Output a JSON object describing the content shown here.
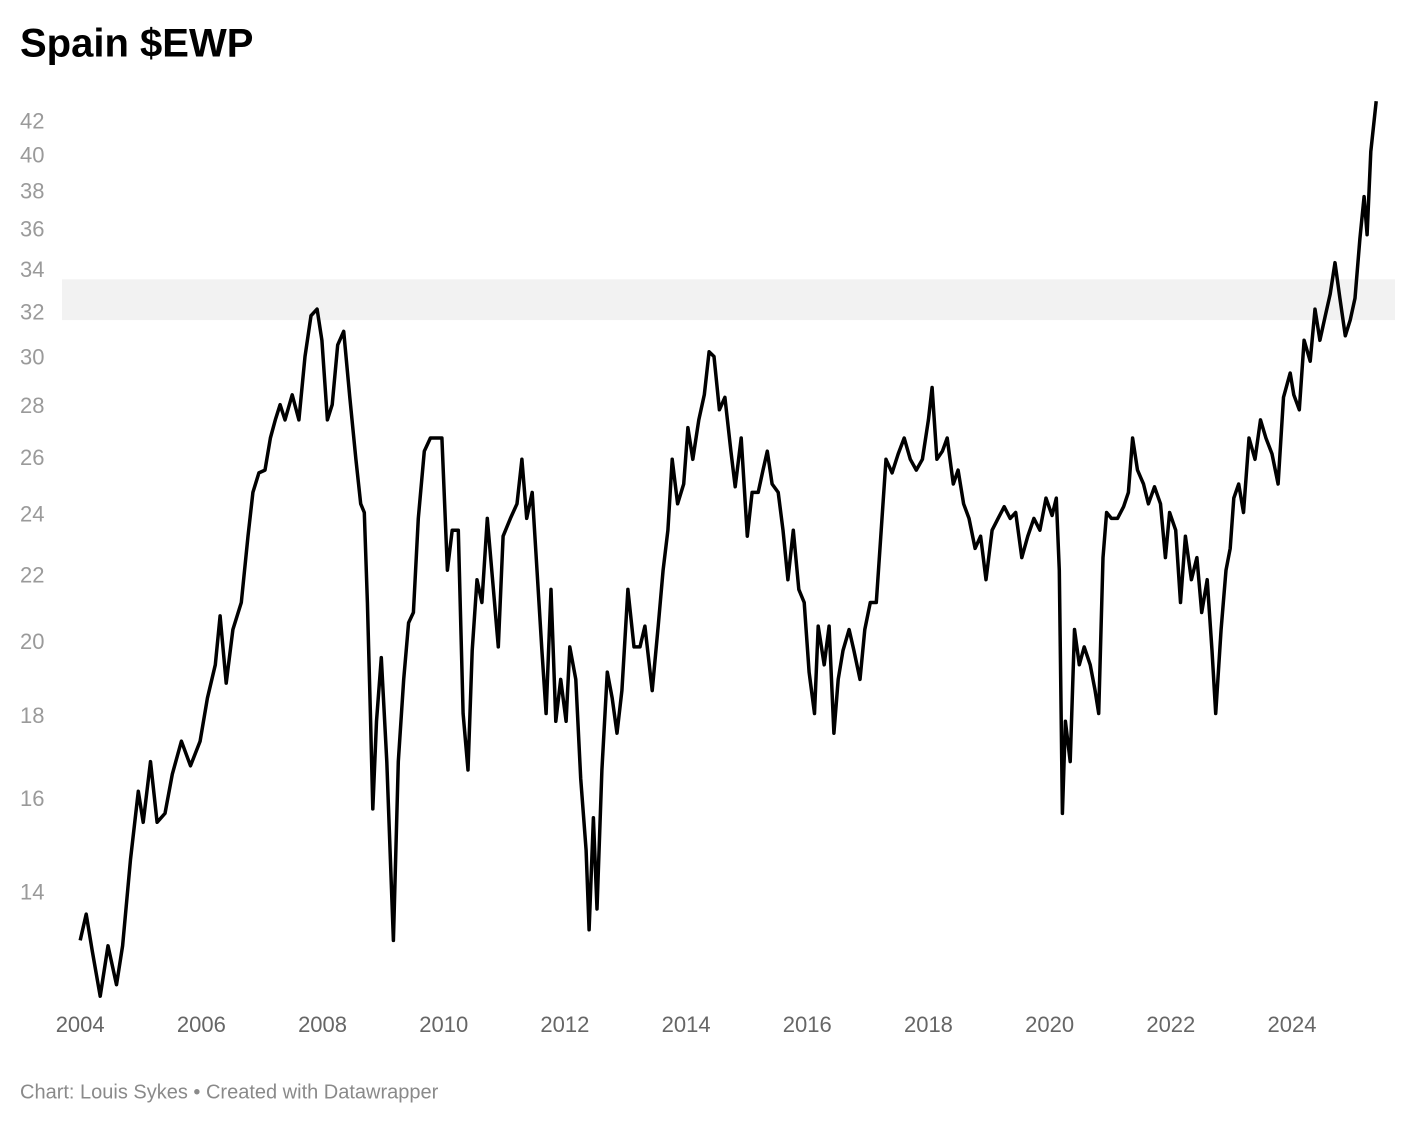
{
  "chart_data": {
    "type": "line",
    "title": "Spain $EWP",
    "source": "Chart: Louis Sykes • Created with Datawrapper",
    "log_scale_y": true,
    "grid": false,
    "xlim": [
      2003.7,
      2025.7
    ],
    "xticks": [
      2004,
      2006,
      2008,
      2010,
      2012,
      2014,
      2016,
      2018,
      2020,
      2022,
      2024
    ],
    "ylim": [
      12,
      43.5
    ],
    "yticks": [
      14,
      16,
      18,
      20,
      22,
      24,
      26,
      28,
      30,
      32,
      34,
      36,
      38,
      40,
      42
    ],
    "highlight_band": {
      "range": [
        31.7,
        33.6
      ],
      "color": "#f2f2f2"
    },
    "x": [
      2004.0,
      2004.1,
      2004.2,
      2004.33,
      2004.46,
      2004.6,
      2004.7,
      2004.83,
      2004.96,
      2005.04,
      2005.16,
      2005.27,
      2005.4,
      2005.52,
      2005.67,
      2005.82,
      2005.98,
      2006.1,
      2006.23,
      2006.31,
      2006.41,
      2006.52,
      2006.66,
      2006.77,
      2006.85,
      2006.95,
      2007.05,
      2007.14,
      2007.22,
      2007.3,
      2007.38,
      2007.5,
      2007.61,
      2007.71,
      2007.81,
      2007.91,
      2007.99,
      2008.08,
      2008.16,
      2008.25,
      2008.35,
      2008.45,
      2008.55,
      2008.63,
      2008.69,
      2008.74,
      2008.79,
      2008.83,
      2008.89,
      2008.97,
      2009.06,
      2009.12,
      2009.17,
      2009.25,
      2009.34,
      2009.42,
      2009.5,
      2009.58,
      2009.68,
      2009.78,
      2009.88,
      2009.97,
      2010.06,
      2010.14,
      2010.24,
      2010.32,
      2010.4,
      2010.47,
      2010.55,
      2010.63,
      2010.72,
      2010.82,
      2010.9,
      2010.98,
      2011.1,
      2011.21,
      2011.29,
      2011.37,
      2011.46,
      2011.54,
      2011.62,
      2011.69,
      2011.77,
      2011.85,
      2011.93,
      2012.02,
      2012.08,
      2012.18,
      2012.26,
      2012.35,
      2012.4,
      2012.47,
      2012.53,
      2012.61,
      2012.7,
      2012.78,
      2012.86,
      2012.94,
      2013.04,
      2013.14,
      2013.24,
      2013.32,
      2013.44,
      2013.54,
      2013.62,
      2013.7,
      2013.77,
      2013.86,
      2013.96,
      2014.03,
      2014.11,
      2014.21,
      2014.3,
      2014.38,
      2014.46,
      2014.55,
      2014.64,
      2014.74,
      2014.81,
      2014.91,
      2015.01,
      2015.09,
      2015.19,
      2015.27,
      2015.34,
      2015.42,
      2015.52,
      2015.6,
      2015.68,
      2015.77,
      2015.86,
      2015.95,
      2016.03,
      2016.12,
      2016.18,
      2016.28,
      2016.36,
      2016.44,
      2016.51,
      2016.59,
      2016.69,
      2016.77,
      2016.87,
      2016.95,
      2017.04,
      2017.14,
      2017.22,
      2017.3,
      2017.4,
      2017.5,
      2017.6,
      2017.7,
      2017.8,
      2017.9,
      2018.0,
      2018.06,
      2018.14,
      2018.23,
      2018.31,
      2018.41,
      2018.49,
      2018.58,
      2018.67,
      2018.77,
      2018.86,
      2018.95,
      2019.05,
      2019.15,
      2019.25,
      2019.35,
      2019.44,
      2019.54,
      2019.64,
      2019.74,
      2019.84,
      2019.94,
      2020.04,
      2020.11,
      2020.16,
      2020.21,
      2020.26,
      2020.34,
      2020.41,
      2020.49,
      2020.57,
      2020.67,
      2020.75,
      2020.81,
      2020.88,
      2020.94,
      2021.02,
      2021.12,
      2021.22,
      2021.3,
      2021.37,
      2021.45,
      2021.55,
      2021.63,
      2021.73,
      2021.83,
      2021.91,
      2021.98,
      2022.08,
      2022.16,
      2022.24,
      2022.34,
      2022.43,
      2022.51,
      2022.6,
      2022.68,
      2022.74,
      2022.83,
      2022.91,
      2022.98,
      2023.04,
      2023.12,
      2023.2,
      2023.29,
      2023.39,
      2023.48,
      2023.57,
      2023.67,
      2023.77,
      2023.86,
      2023.97,
      2024.03,
      2024.12,
      2024.2,
      2024.3,
      2024.38,
      2024.46,
      2024.55,
      2024.63,
      2024.71,
      2024.79,
      2024.88,
      2024.96,
      2025.04,
      2025.12,
      2025.19,
      2025.24,
      2025.3,
      2025.39
    ],
    "series": [
      {
        "color": "#000000",
        "values": [
          13.1,
          13.6,
          12.9,
          12.1,
          13.0,
          12.3,
          13.0,
          14.7,
          16.2,
          15.5,
          16.9,
          15.5,
          15.7,
          16.6,
          17.4,
          16.8,
          17.4,
          18.5,
          19.4,
          20.8,
          18.9,
          20.4,
          21.2,
          23.3,
          24.8,
          25.5,
          25.6,
          26.8,
          27.5,
          28.1,
          27.5,
          28.5,
          27.5,
          30.1,
          31.9,
          32.2,
          30.8,
          27.5,
          28.1,
          30.6,
          31.2,
          28.4,
          26.0,
          24.4,
          24.1,
          21.2,
          18.1,
          15.8,
          17.9,
          19.6,
          16.9,
          14.7,
          13.1,
          16.9,
          19.0,
          20.6,
          20.9,
          23.9,
          26.3,
          26.8,
          26.8,
          26.8,
          22.2,
          23.5,
          23.5,
          18.1,
          16.7,
          19.8,
          21.9,
          21.2,
          23.9,
          21.6,
          19.9,
          23.3,
          23.9,
          24.4,
          26.0,
          23.9,
          24.8,
          22.2,
          19.8,
          18.1,
          21.6,
          17.9,
          19.0,
          17.9,
          19.9,
          19.0,
          16.5,
          14.9,
          13.3,
          15.6,
          13.7,
          16.7,
          19.2,
          18.5,
          17.6,
          18.7,
          21.6,
          19.9,
          19.9,
          20.5,
          18.7,
          20.5,
          22.2,
          23.5,
          26.0,
          24.4,
          25.1,
          27.2,
          26.0,
          27.5,
          28.5,
          30.3,
          30.1,
          27.9,
          28.4,
          26.3,
          25.0,
          26.8,
          23.3,
          24.8,
          24.8,
          25.6,
          26.3,
          25.1,
          24.8,
          23.5,
          21.9,
          23.5,
          21.6,
          21.2,
          19.2,
          18.1,
          20.5,
          19.4,
          20.5,
          17.6,
          19.0,
          19.8,
          20.4,
          19.8,
          19.0,
          20.4,
          21.2,
          21.2,
          23.5,
          26.0,
          25.5,
          26.2,
          26.8,
          26.0,
          25.6,
          26.0,
          27.5,
          28.8,
          26.0,
          26.3,
          26.8,
          25.1,
          25.6,
          24.4,
          23.9,
          22.9,
          23.3,
          21.9,
          23.5,
          23.9,
          24.3,
          23.9,
          24.1,
          22.6,
          23.3,
          23.9,
          23.5,
          24.6,
          24.0,
          24.6,
          22.2,
          15.7,
          17.9,
          16.9,
          20.4,
          19.4,
          19.9,
          19.4,
          18.7,
          18.1,
          22.6,
          24.1,
          23.9,
          23.9,
          24.3,
          24.8,
          26.8,
          25.6,
          25.1,
          24.4,
          25.0,
          24.4,
          22.6,
          24.1,
          23.5,
          21.2,
          23.3,
          21.9,
          22.6,
          20.9,
          21.9,
          19.8,
          18.1,
          20.4,
          22.2,
          22.9,
          24.6,
          25.1,
          24.1,
          26.8,
          26.0,
          27.5,
          26.8,
          26.2,
          25.1,
          28.4,
          29.4,
          28.5,
          27.9,
          30.8,
          29.9,
          32.2,
          30.8,
          31.9,
          32.9,
          34.4,
          32.7,
          31.0,
          31.7,
          32.7,
          35.6,
          37.8,
          35.8,
          40.3,
          43.3
        ]
      }
    ]
  }
}
